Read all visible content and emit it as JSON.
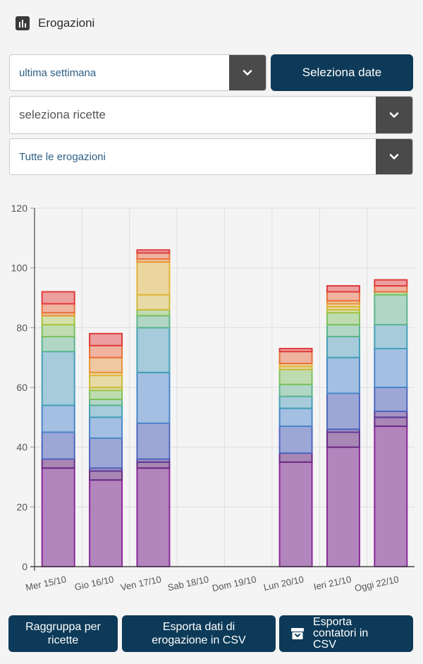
{
  "header": {
    "title": "Erogazioni",
    "icon": "bar-chart-icon"
  },
  "filters": {
    "period": {
      "value": "ultima settimana"
    },
    "select_dates_label": "Seleziona date",
    "recipes": {
      "placeholder": "seleziona ricette"
    },
    "dispense_type": {
      "value": "Tutte le erogazioni"
    }
  },
  "chart_data": {
    "type": "bar",
    "stacked": true,
    "categories": [
      "Mer 15/10",
      "Gio 16/10",
      "Ven 17/10",
      "Sab 18/10",
      "Dom 19/10",
      "Lun 20/10",
      "Ieri 21/10",
      "Oggi 22/10"
    ],
    "ylim": [
      0,
      120
    ],
    "yticks": [
      "0",
      "20",
      "40",
      "60",
      "80",
      "100",
      "120"
    ],
    "grid": true,
    "series": [
      {
        "values": [
          33,
          29,
          33,
          0,
          0,
          35,
          40,
          47
        ],
        "fill": "#b385bd",
        "stroke": "#8a2a9a"
      },
      {
        "values": [
          3,
          3,
          2,
          0,
          0,
          3,
          5,
          3
        ],
        "fill": "#a887b5",
        "stroke": "#6a2a86"
      },
      {
        "values": [
          0,
          1,
          1,
          0,
          0,
          0,
          1,
          2
        ],
        "fill": "#a793c2",
        "stroke": "#5a3a96"
      },
      {
        "values": [
          9,
          10,
          12,
          0,
          0,
          9,
          12,
          8
        ],
        "fill": "#9da7d6",
        "stroke": "#4f66bf"
      },
      {
        "values": [
          9,
          7,
          17,
          0,
          0,
          6,
          12,
          13
        ],
        "fill": "#a3bfe2",
        "stroke": "#4a86c8"
      },
      {
        "values": [
          18,
          4,
          15,
          0,
          0,
          4,
          7,
          8
        ],
        "fill": "#a6cbda",
        "stroke": "#45a0b8"
      },
      {
        "values": [
          5,
          2,
          4,
          0,
          0,
          4,
          4,
          10
        ],
        "fill": "#b2d6c6",
        "stroke": "#5bb58d"
      },
      {
        "values": [
          4,
          3,
          2,
          0,
          0,
          5,
          4,
          1
        ],
        "fill": "#bfdcb0",
        "stroke": "#7cc15c"
      },
      {
        "values": [
          3,
          1,
          0,
          0,
          0,
          0,
          1,
          0
        ],
        "fill": "#d4e0aa",
        "stroke": "#a6c440"
      },
      {
        "values": [
          0,
          4,
          5,
          0,
          0,
          1,
          1,
          0
        ],
        "fill": "#e6dba7",
        "stroke": "#d0b93a"
      },
      {
        "values": [
          0,
          1,
          11,
          0,
          0,
          1,
          1,
          0
        ],
        "fill": "#ecd6a0",
        "stroke": "#e2b43c"
      },
      {
        "values": [
          1,
          5,
          1,
          0,
          0,
          0,
          1,
          0
        ],
        "fill": "#efc7a0",
        "stroke": "#e8943a"
      },
      {
        "values": [
          3,
          4,
          2,
          0,
          0,
          4,
          3,
          2
        ],
        "fill": "#efb3a0",
        "stroke": "#e8703a"
      },
      {
        "values": [
          4,
          4,
          1,
          0,
          0,
          1,
          2,
          2
        ],
        "fill": "#ec9f9f",
        "stroke": "#df3a3a"
      }
    ]
  },
  "actions": {
    "group_by_recipes_label": "Raggruppa per ricette",
    "export_dispensing_label": "Esporta dati di erogazione in CSV",
    "export_counters_label": "Esporta contatori in CSV",
    "export_counters_icon": "archive-download-icon"
  }
}
